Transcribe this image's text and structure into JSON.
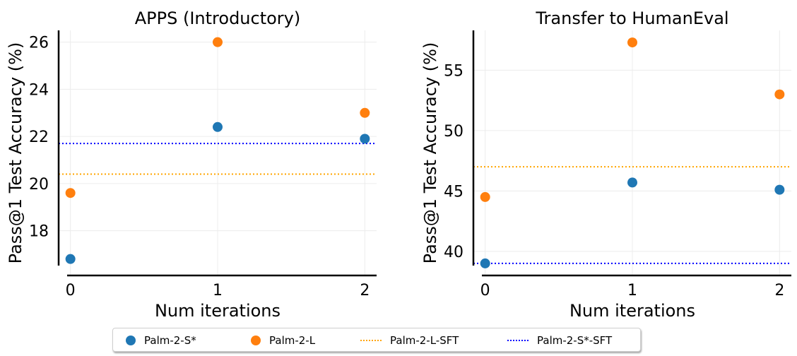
{
  "colors": {
    "palm2s": "#1f77b4",
    "palm2l": "#ff7f0e",
    "palm2l_sft": "#ffa500",
    "palm2s_sft": "#0000ff",
    "grid": "#ececec"
  },
  "legend": [
    {
      "label": "Palm-2-S*",
      "kind": "dot",
      "color": "#1f77b4"
    },
    {
      "label": "Palm-2-L",
      "kind": "dot",
      "color": "#ff7f0e"
    },
    {
      "label": "Palm-2-L-SFT",
      "kind": "dash",
      "color": "#ffa500"
    },
    {
      "label": "Palm-2-S*-SFT",
      "kind": "dash",
      "color": "#0000ff"
    }
  ],
  "chart_data": [
    {
      "type": "scatter",
      "title": "APPS (Introductory)",
      "xlabel": "Num iterations",
      "ylabel": "Pass@1 Test Accuracy (%)",
      "x": [
        0,
        1,
        2
      ],
      "xticks": [
        "0",
        "1",
        "2"
      ],
      "xlim": [
        -0.08,
        2.08
      ],
      "yticks": [
        18,
        20,
        22,
        24,
        26
      ],
      "ylim": [
        16.1,
        26.5
      ],
      "grid": true,
      "series": [
        {
          "name": "Palm-2-S*",
          "color": "#1f77b4",
          "values": [
            16.8,
            22.4,
            21.9
          ]
        },
        {
          "name": "Palm-2-L",
          "color": "#ff7f0e",
          "values": [
            19.6,
            26.0,
            23.0
          ]
        }
      ],
      "hlines": [
        {
          "name": "Palm-2-L-SFT",
          "color": "#ffa500",
          "y": 20.4
        },
        {
          "name": "Palm-2-S*-SFT",
          "color": "#0000ff",
          "y": 21.7
        }
      ]
    },
    {
      "type": "scatter",
      "title": "Transfer to HumanEval",
      "xlabel": "Num iterations",
      "ylabel": "Pass@1 Test Accuracy (%)",
      "x": [
        0,
        1,
        2
      ],
      "xticks": [
        "0",
        "1",
        "2"
      ],
      "xlim": [
        -0.08,
        2.08
      ],
      "yticks": [
        40,
        45,
        50,
        55
      ],
      "ylim": [
        38.0,
        58.3
      ],
      "grid": true,
      "series": [
        {
          "name": "Palm-2-S*",
          "color": "#1f77b4",
          "values": [
            39.0,
            45.7,
            45.1
          ]
        },
        {
          "name": "Palm-2-L",
          "color": "#ff7f0e",
          "values": [
            44.5,
            57.3,
            53.0
          ]
        }
      ],
      "hlines": [
        {
          "name": "Palm-2-L-SFT",
          "color": "#ffa500",
          "y": 47.0
        },
        {
          "name": "Palm-2-S*-SFT",
          "color": "#0000ff",
          "y": 39.0
        }
      ]
    }
  ]
}
